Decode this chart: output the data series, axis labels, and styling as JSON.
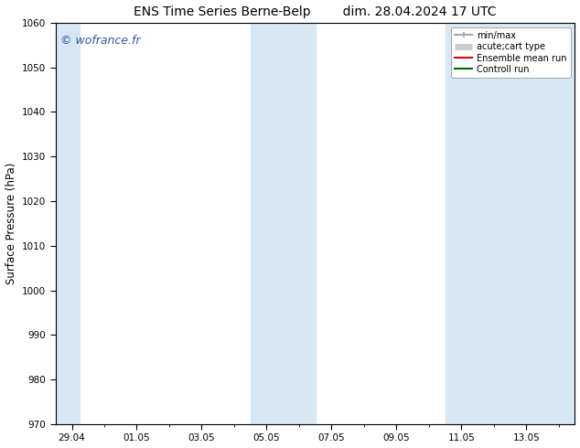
{
  "title": "ENS Time Series Berne-Belp        dim. 28.04.2024 17 UTC",
  "ylabel": "Surface Pressure (hPa)",
  "ylim": [
    970,
    1060
  ],
  "yticks": [
    970,
    980,
    990,
    1000,
    1010,
    1020,
    1030,
    1040,
    1050,
    1060
  ],
  "xtick_labels": [
    "29.04",
    "01.05",
    "03.05",
    "05.05",
    "07.05",
    "09.05",
    "11.05",
    "13.05"
  ],
  "xtick_positions": [
    0.0,
    2.0,
    4.0,
    6.0,
    8.0,
    10.0,
    12.0,
    14.0
  ],
  "xlim": [
    -0.5,
    15.5
  ],
  "shaded_regions": [
    {
      "xmin": -0.5,
      "xmax": 0.25
    },
    {
      "xmin": 5.5,
      "xmax": 7.5
    },
    {
      "xmin": 11.5,
      "xmax": 15.5
    }
  ],
  "shade_color": "#d6e8f5",
  "watermark_text": "© wofrance.fr",
  "watermark_color": "#3355aa",
  "legend_entries": [
    {
      "label": "min/max",
      "color": "#aaaaaa",
      "lw": 1.5
    },
    {
      "label": "acute;cart type",
      "color": "#cccccc",
      "lw": 5
    },
    {
      "label": "Ensemble mean run",
      "color": "#dd0000",
      "lw": 1.5
    },
    {
      "label": "Controll run",
      "color": "#006600",
      "lw": 1.5
    }
  ],
  "bg_color": "#ffffff",
  "title_fontsize": 10,
  "tick_fontsize": 7.5,
  "label_fontsize": 8.5
}
